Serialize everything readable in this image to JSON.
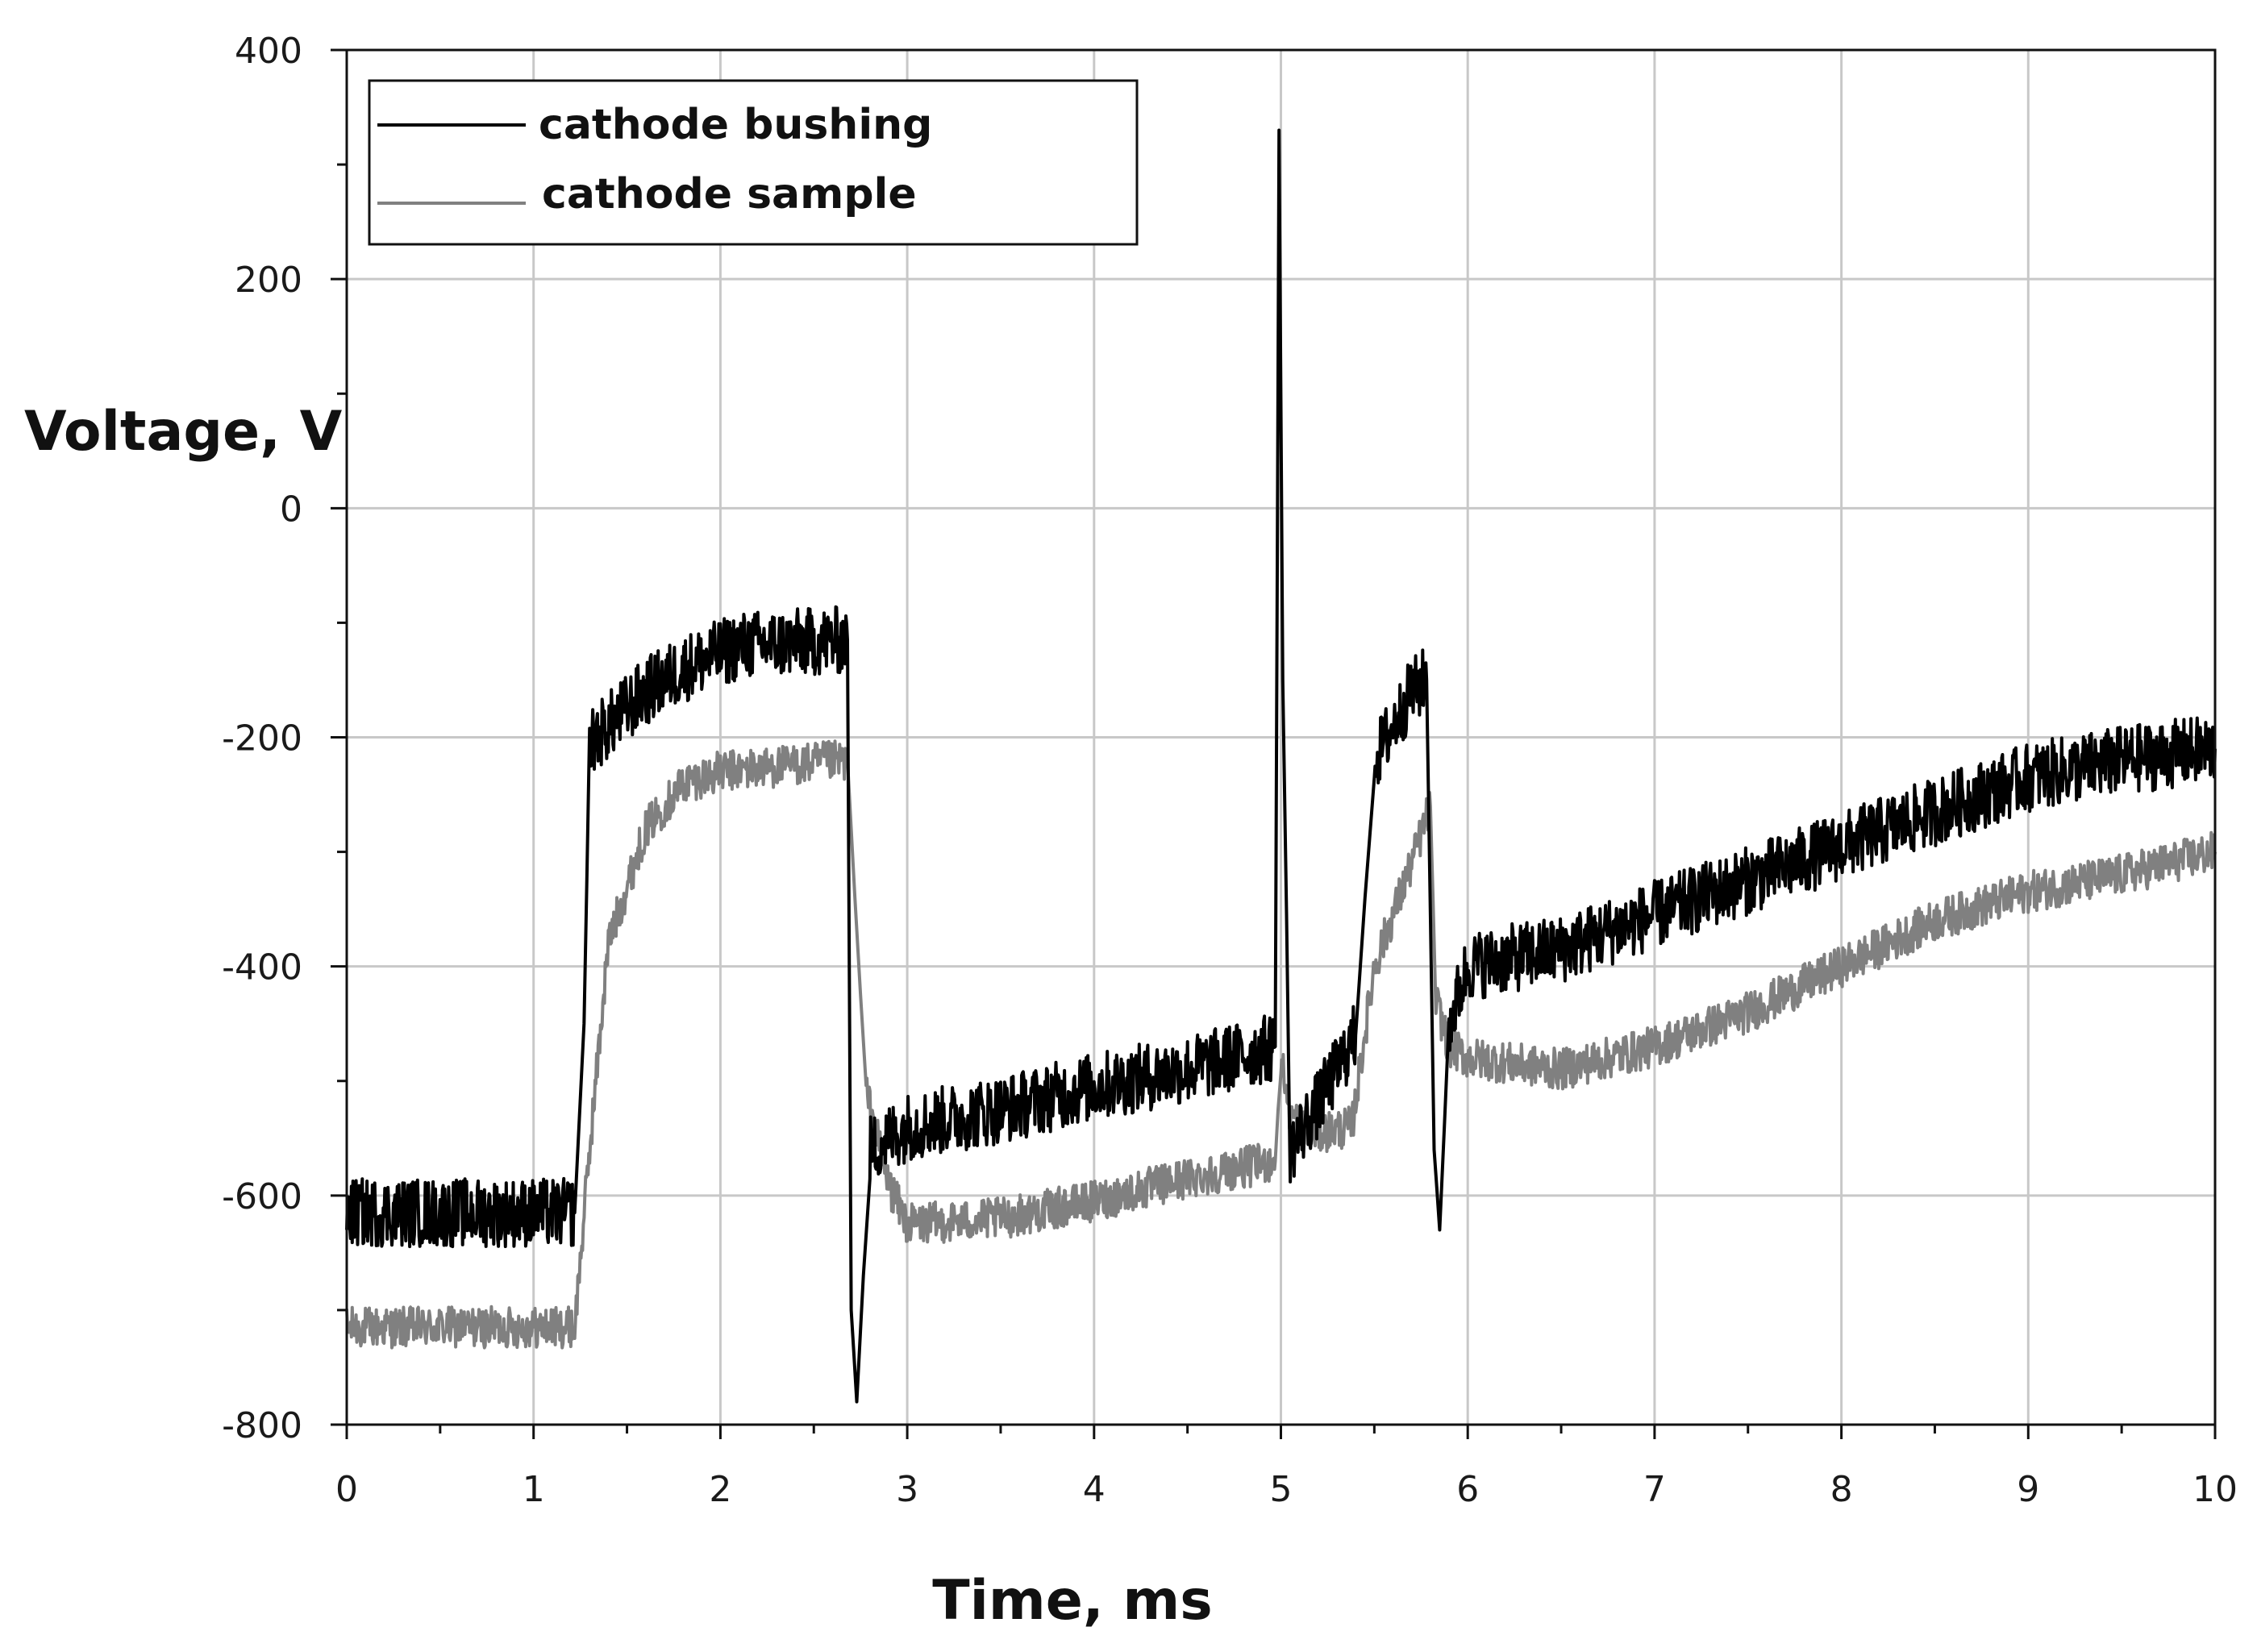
{
  "chart_data": {
    "type": "line",
    "title": "",
    "xlabel": "Time, ms",
    "ylabel": "Voltage, V",
    "xlim": [
      0,
      10
    ],
    "ylim": [
      -800,
      400
    ],
    "xticks": [
      0,
      1,
      2,
      3,
      4,
      5,
      6,
      7,
      8,
      9,
      10
    ],
    "yticks": [
      400,
      200,
      0,
      -200,
      -400,
      -600,
      -800
    ],
    "x_minor_step": 0.5,
    "y_minor_step": 100,
    "grid": true,
    "legend_position": "top-left",
    "series": [
      {
        "name": "cathode bushing",
        "color": "#000000",
        "noise": 30,
        "points": [
          [
            0,
            -615
          ],
          [
            1.22,
            -615
          ],
          [
            1.27,
            -450
          ],
          [
            1.3,
            -205
          ],
          [
            1.4,
            -190
          ],
          [
            1.6,
            -160
          ],
          [
            1.8,
            -140
          ],
          [
            2.1,
            -120
          ],
          [
            2.68,
            -115
          ],
          [
            2.7,
            -700
          ],
          [
            2.73,
            -780
          ],
          [
            2.8,
            -560
          ],
          [
            3.0,
            -540
          ],
          [
            3.5,
            -525
          ],
          [
            4.0,
            -505
          ],
          [
            4.5,
            -490
          ],
          [
            4.97,
            -470
          ],
          [
            4.99,
            330
          ],
          [
            5.01,
            -150
          ],
          [
            5.05,
            -560
          ],
          [
            5.2,
            -520
          ],
          [
            5.4,
            -460
          ],
          [
            5.5,
            -220
          ],
          [
            5.7,
            -160
          ],
          [
            5.78,
            -150
          ],
          [
            5.82,
            -560
          ],
          [
            5.85,
            -630
          ],
          [
            5.9,
            -450
          ],
          [
            6.0,
            -400
          ],
          [
            6.5,
            -385
          ],
          [
            7.0,
            -355
          ],
          [
            7.5,
            -325
          ],
          [
            8.0,
            -295
          ],
          [
            8.5,
            -265
          ],
          [
            9.0,
            -235
          ],
          [
            9.5,
            -220
          ],
          [
            10.0,
            -210
          ]
        ]
      },
      {
        "name": "cathode sample",
        "color": "#808080",
        "noise": 18,
        "points": [
          [
            0,
            -715
          ],
          [
            1.22,
            -715
          ],
          [
            1.3,
            -560
          ],
          [
            1.4,
            -380
          ],
          [
            1.6,
            -280
          ],
          [
            1.8,
            -240
          ],
          [
            2.0,
            -230
          ],
          [
            2.68,
            -220
          ],
          [
            2.72,
            -340
          ],
          [
            2.78,
            -510
          ],
          [
            2.9,
            -590
          ],
          [
            3.0,
            -625
          ],
          [
            3.5,
            -620
          ],
          [
            4.0,
            -605
          ],
          [
            4.5,
            -585
          ],
          [
            4.97,
            -570
          ],
          [
            5.0,
            -480
          ],
          [
            5.05,
            -530
          ],
          [
            5.2,
            -545
          ],
          [
            5.38,
            -540
          ],
          [
            5.5,
            -400
          ],
          [
            5.7,
            -310
          ],
          [
            5.8,
            -260
          ],
          [
            5.83,
            -430
          ],
          [
            5.9,
            -470
          ],
          [
            6.0,
            -480
          ],
          [
            6.5,
            -490
          ],
          [
            7.0,
            -470
          ],
          [
            7.5,
            -440
          ],
          [
            8.0,
            -400
          ],
          [
            8.5,
            -360
          ],
          [
            9.0,
            -335
          ],
          [
            9.5,
            -320
          ],
          [
            10.0,
            -300
          ]
        ]
      }
    ]
  }
}
